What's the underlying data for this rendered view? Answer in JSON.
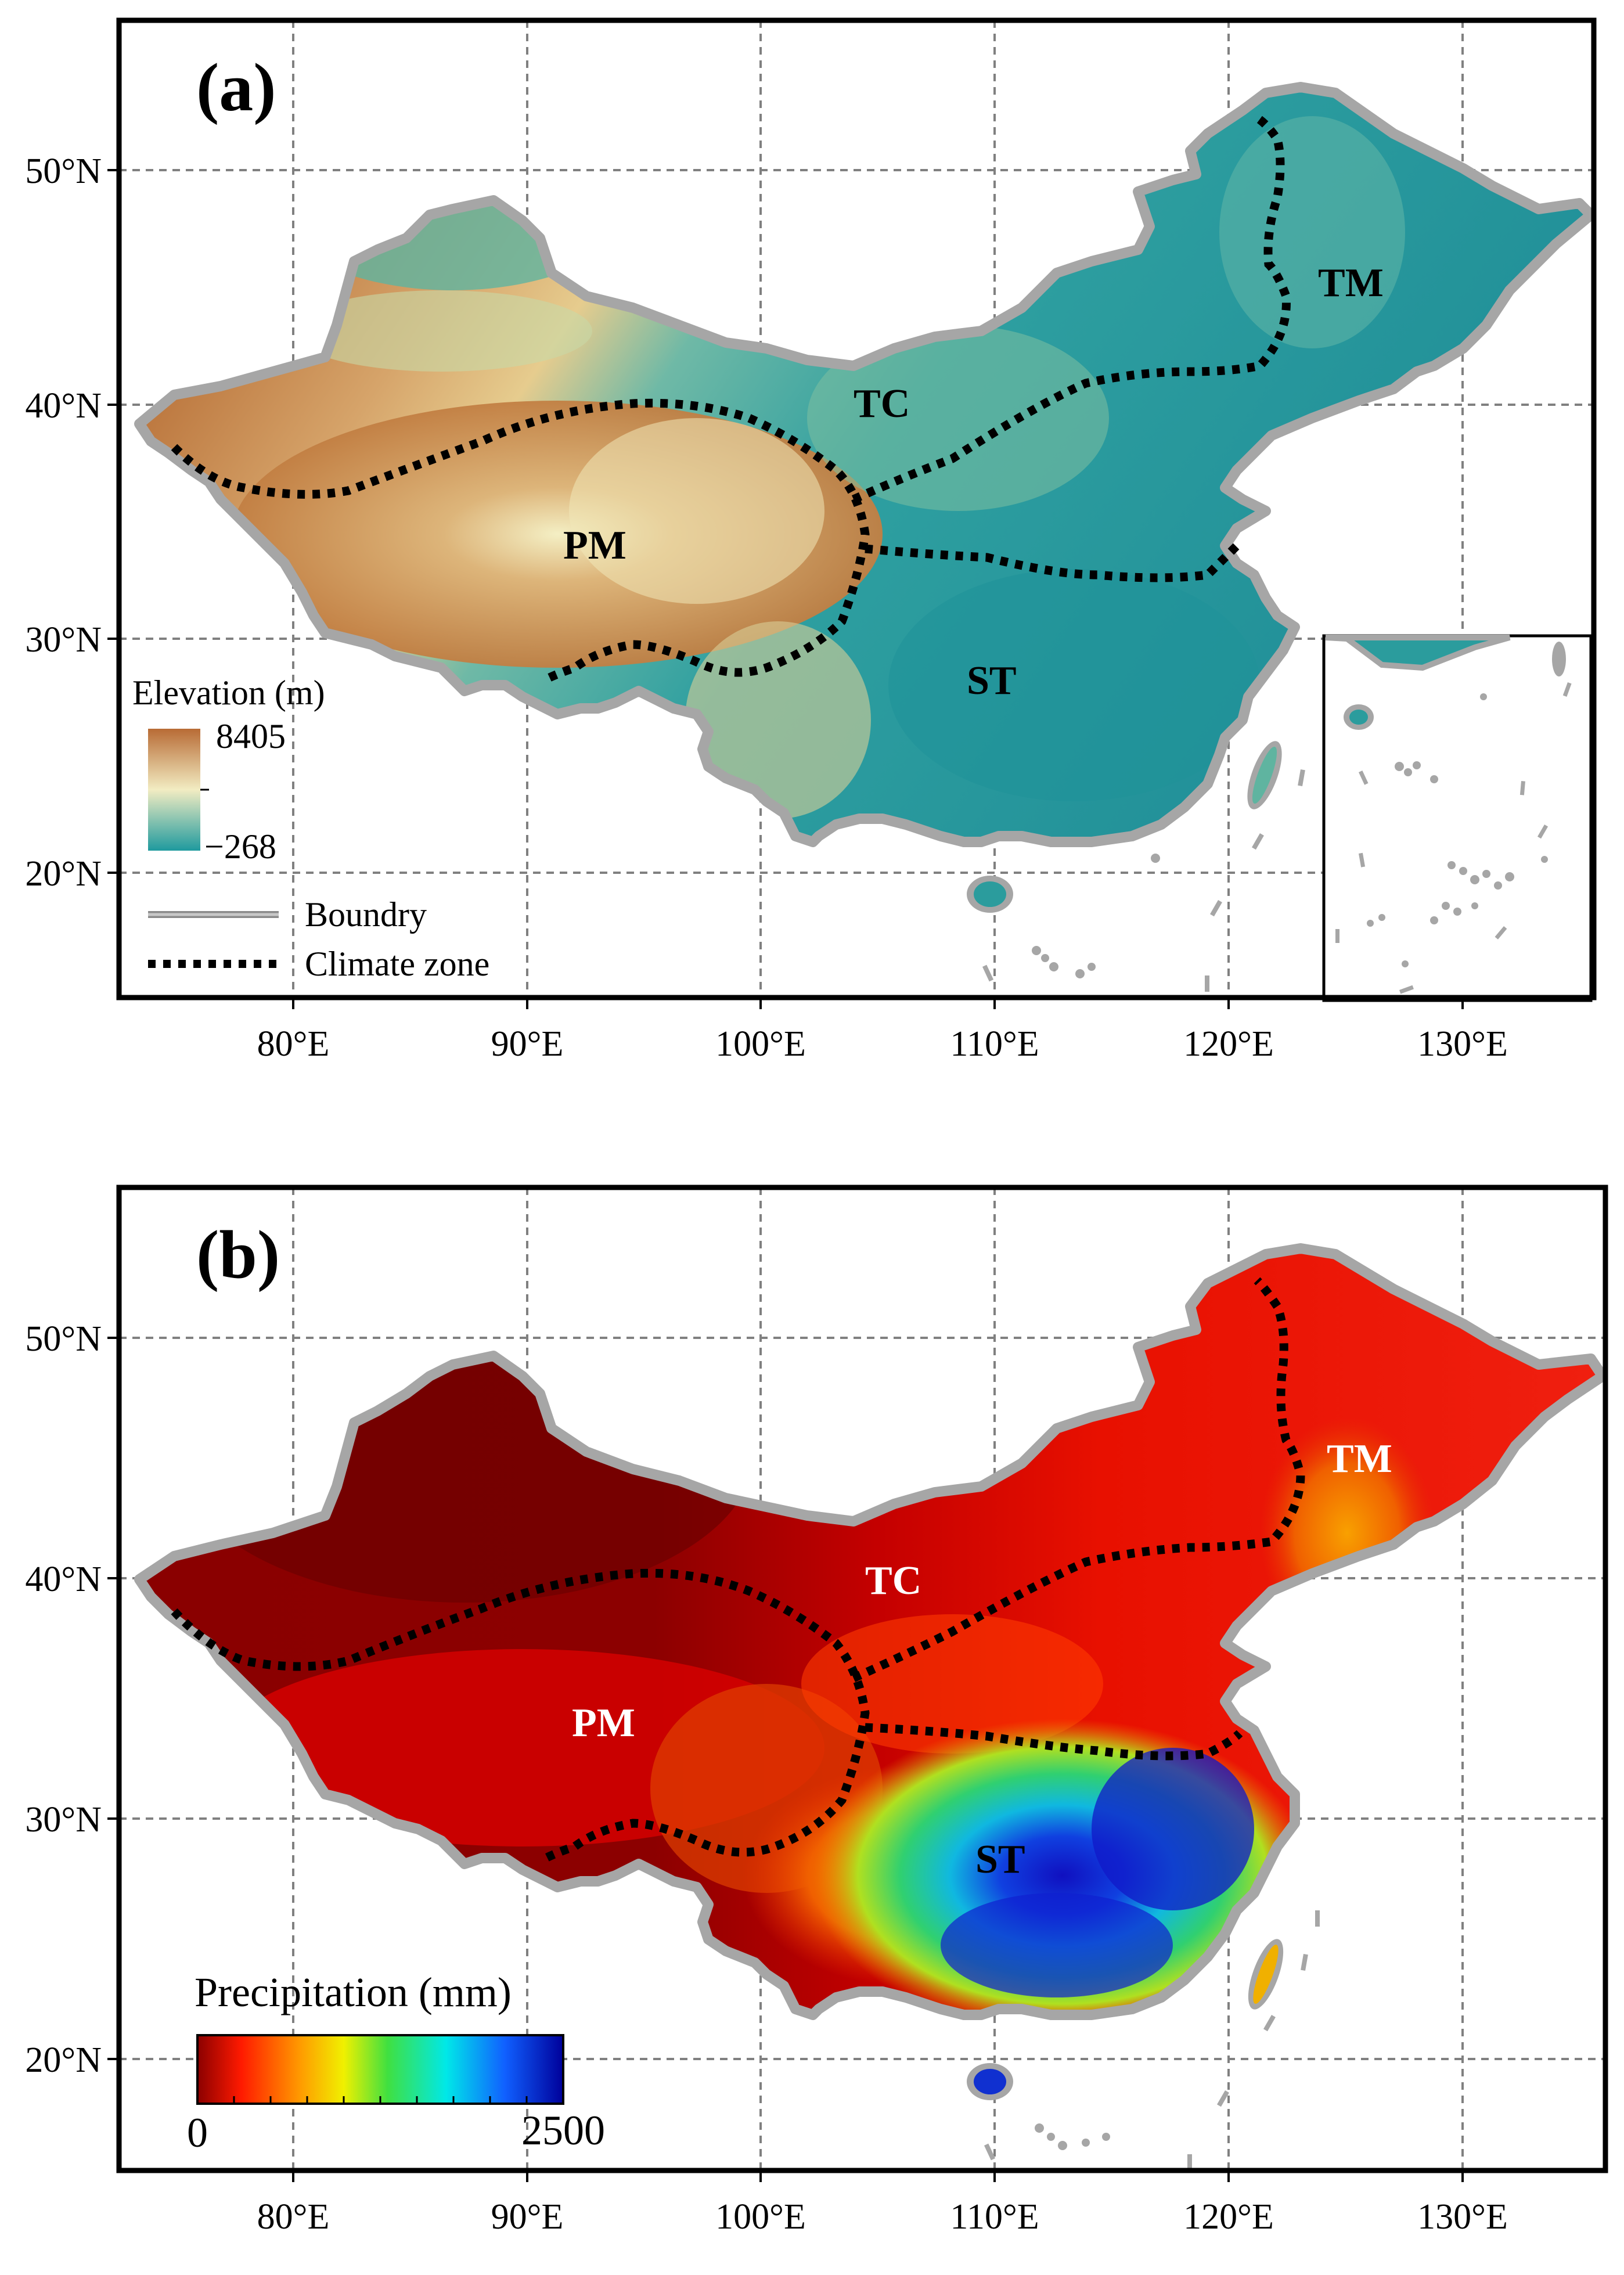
{
  "axes": {
    "x_ticks": [
      "80°E",
      "90°E",
      "100°E",
      "110°E",
      "120°E",
      "130°E"
    ],
    "y_ticks": [
      "50°N",
      "40°N",
      "30°N",
      "20°N"
    ]
  },
  "panel_a": {
    "label": "(a)",
    "zones": [
      "PM",
      "TC",
      "TM",
      "ST"
    ],
    "legend": {
      "title": "Elevation (m)",
      "max": "8405",
      "min": "−268",
      "boundary_label": "Boundry",
      "climate_label": "Climate zone"
    }
  },
  "panel_b": {
    "label": "(b)",
    "zones": [
      "PM",
      "TC",
      "TM",
      "ST"
    ],
    "legend": {
      "title": "Precipitation (mm)",
      "min": "0",
      "max": "2500"
    }
  },
  "colors": {
    "elevation_high": "#b86b35",
    "elevation_mid": "#f2ecc2",
    "elevation_low": "#1f9a9e",
    "precip_low": "#7a0000",
    "precip_high": "#0000a0",
    "boundary": "#a6a6a6",
    "climate_zone": "#000000"
  }
}
